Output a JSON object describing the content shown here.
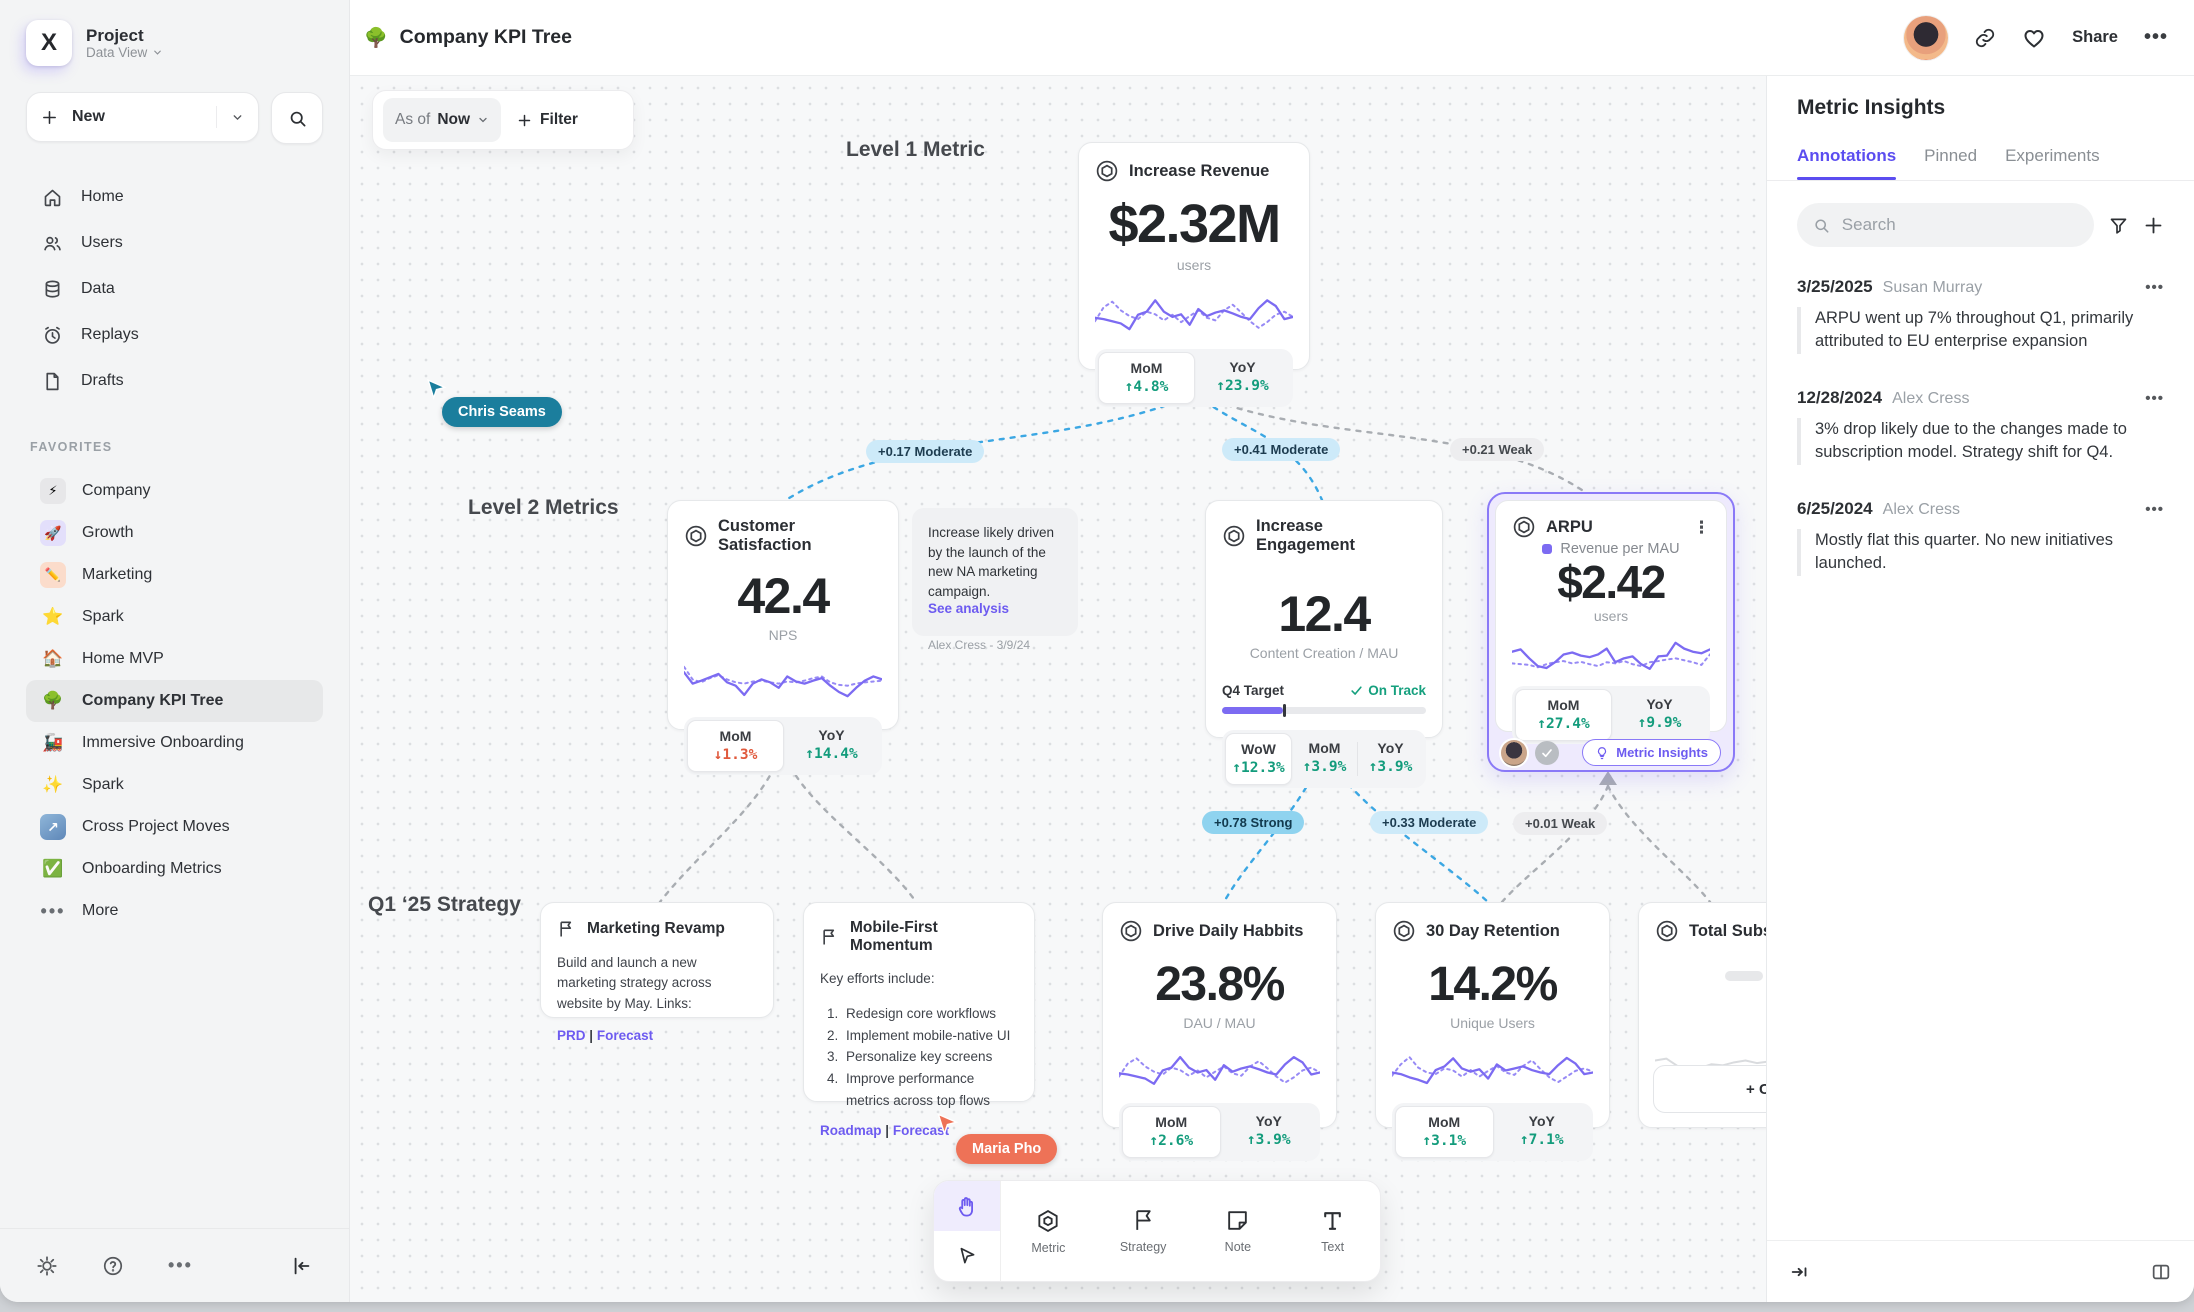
{
  "sidebar": {
    "project": {
      "name": "Project",
      "view": "Data View"
    },
    "new_label": "New",
    "nav": [
      {
        "label": "Home"
      },
      {
        "label": "Users"
      },
      {
        "label": "Data"
      },
      {
        "label": "Replays"
      },
      {
        "label": "Drafts"
      }
    ],
    "favorites_title": "FAVORITES",
    "favorites": [
      {
        "icon": "⚡",
        "label": "Company"
      },
      {
        "icon": "🚀",
        "label": "Growth"
      },
      {
        "icon": "✏️",
        "label": "Marketing"
      },
      {
        "icon": "⭐",
        "label": "Spark"
      },
      {
        "icon": "🏠",
        "label": "Home MVP"
      },
      {
        "icon": "🌳",
        "label": "Company KPI Tree"
      },
      {
        "icon": "🚂",
        "label": "Immersive Onboarding"
      },
      {
        "icon": "✨",
        "label": "Spark"
      },
      {
        "icon": "↗",
        "label": "Cross Project Moves"
      },
      {
        "icon": "✅",
        "label": "Onboarding Metrics"
      }
    ],
    "more_label": "More"
  },
  "header": {
    "icon": "🌳",
    "title": "Company KPI Tree",
    "share_label": "Share"
  },
  "canvas": {
    "asof_prefix": "As of",
    "asof_value": "Now",
    "filter_label": "Filter",
    "level1_label": "Level 1 Metric",
    "level2_label": "Level 2 Metrics",
    "strategy_label": "Q1 ‘25 Strategy",
    "cursors": {
      "chris": "Chris Seams",
      "maria": "Maria Pho"
    },
    "edge_labels": {
      "e1": "+0.17 Moderate",
      "e2": "+0.41 Moderate",
      "e3": "+0.21 Weak",
      "e4": "+0.78 Strong",
      "e5": "+0.33 Moderate",
      "e6": "+0.01 Weak"
    },
    "nodes": {
      "increase_revenue": {
        "title": "Increase Revenue",
        "value": "$2.32M",
        "unit": "users",
        "footer": [
          {
            "label": "MoM",
            "value": "↑4.8%"
          },
          {
            "label": "YoY",
            "value": "↑23.9%"
          }
        ],
        "spark_solid": [
          0.38,
          0.35,
          0.3,
          0.25,
          0.12,
          0.45,
          0.52,
          0.78,
          0.52,
          0.4,
          0.46,
          0.22,
          0.58,
          0.42,
          0.5,
          0.55,
          0.48,
          0.4,
          0.35,
          0.6,
          0.78,
          0.65,
          0.35,
          0.4
        ],
        "spark_dot": [
          0.3,
          0.62,
          0.75,
          0.55,
          0.42,
          0.35,
          0.52,
          0.46,
          0.32,
          0.45,
          0.28,
          0.42,
          0.55,
          0.38,
          0.32,
          0.55,
          0.68,
          0.5,
          0.3,
          0.15,
          0.28,
          0.45,
          0.52,
          0.4
        ]
      },
      "customer_satisfaction": {
        "title": "Customer Satisfaction",
        "value": "42.4",
        "unit": "NPS",
        "footer": [
          {
            "label": "MoM",
            "value": "↓1.3%"
          },
          {
            "label": "YoY",
            "value": "↑14.4%"
          }
        ],
        "spark_solid": [
          0.72,
          0.45,
          0.52,
          0.6,
          0.68,
          0.48,
          0.4,
          0.18,
          0.45,
          0.55,
          0.48,
          0.35,
          0.62,
          0.5,
          0.45,
          0.52,
          0.58,
          0.4,
          0.25,
          0.15,
          0.35,
          0.52,
          0.62,
          0.55
        ],
        "spark_dot": [
          0.85,
          0.55,
          0.48,
          0.58,
          0.65,
          0.55,
          0.48,
          0.45,
          0.5,
          0.52,
          0.48,
          0.45,
          0.5,
          0.48,
          0.52,
          0.58,
          0.62,
          0.48,
          0.42,
          0.4,
          0.45,
          0.48,
          0.5,
          0.52
        ]
      },
      "note": {
        "text": "Increase likely driven by the launch of the new NA marketing campaign.",
        "link": "See analysis",
        "author": "Alex Cress - 3/9/24"
      },
      "increase_engagement": {
        "title": "Increase Engagement",
        "value": "12.4",
        "unit": "Content Creation / MAU",
        "target_label": "Q4 Target",
        "target_status": "On Track",
        "target_pct": "30%",
        "footer": [
          {
            "label": "WoW",
            "value": "↑12.3%"
          },
          {
            "label": "MoM",
            "value": "↑3.9%"
          },
          {
            "label": "YoY",
            "value": "↑3.9%"
          }
        ]
      },
      "arpu": {
        "title": "ARPU",
        "legend": "Revenue per MAU",
        "value": "$2.42",
        "unit": "users",
        "footer": [
          {
            "label": "MoM",
            "value": "↑27.4%"
          },
          {
            "label": "YoY",
            "value": "↑9.9%"
          }
        ],
        "insights_label": "Metric Insights",
        "spark_solid": [
          0.62,
          0.68,
          0.45,
          0.25,
          0.2,
          0.35,
          0.55,
          0.6,
          0.52,
          0.48,
          0.55,
          0.7,
          0.35,
          0.45,
          0.5,
          0.3,
          0.18,
          0.5,
          0.52,
          0.85,
          0.7,
          0.62,
          0.58,
          0.68
        ],
        "spark_dot": [
          0.32,
          0.3,
          0.28,
          0.22,
          0.3,
          0.35,
          0.38,
          0.32,
          0.36,
          0.3,
          0.25,
          0.35,
          0.32,
          0.38,
          0.3,
          0.25,
          0.35,
          0.38,
          0.42,
          0.45,
          0.4,
          0.35,
          0.28,
          0.55
        ]
      },
      "marketing_revamp": {
        "title": "Marketing Revamp",
        "body": "Build and launch a new marketing strategy across website by May. Links:",
        "link1": "PRD",
        "sep": "|",
        "link2": "Forecast"
      },
      "mobile_first": {
        "title": "Mobile-First Momentum",
        "intro": "Key efforts include:",
        "items": [
          "Redesign core workflows",
          "Implement mobile-native UI",
          "Personalize key screens",
          "Improve performance metrics across top flows"
        ],
        "link1": "Roadmap",
        "sep": "|",
        "link2": "Forecast"
      },
      "drive_daily": {
        "title": "Drive Daily Habbits",
        "value": "23.8%",
        "unit": "DAU / MAU",
        "footer": [
          {
            "label": "MoM",
            "value": "↑2.6%"
          },
          {
            "label": "YoY",
            "value": "↑3.9%"
          }
        ],
        "spark_solid": [
          0.38,
          0.35,
          0.3,
          0.25,
          0.12,
          0.45,
          0.52,
          0.78,
          0.52,
          0.4,
          0.46,
          0.22,
          0.58,
          0.42,
          0.5,
          0.55,
          0.48,
          0.4,
          0.35,
          0.6,
          0.78,
          0.65,
          0.35,
          0.4
        ],
        "spark_dot": [
          0.3,
          0.62,
          0.75,
          0.55,
          0.42,
          0.35,
          0.52,
          0.46,
          0.32,
          0.45,
          0.28,
          0.42,
          0.55,
          0.38,
          0.32,
          0.55,
          0.68,
          0.5,
          0.3,
          0.15,
          0.28,
          0.45,
          0.52,
          0.4
        ]
      },
      "retention": {
        "title": "30 Day Retention",
        "value": "14.2%",
        "unit": "Unique Users",
        "footer": [
          {
            "label": "MoM",
            "value": "↑3.1%"
          },
          {
            "label": "YoY",
            "value": "↑7.1%"
          }
        ],
        "spark_solid": [
          0.4,
          0.36,
          0.28,
          0.22,
          0.14,
          0.46,
          0.55,
          0.75,
          0.5,
          0.42,
          0.48,
          0.25,
          0.6,
          0.45,
          0.5,
          0.55,
          0.46,
          0.4,
          0.36,
          0.58,
          0.76,
          0.62,
          0.36,
          0.4
        ],
        "spark_dot": [
          0.32,
          0.6,
          0.78,
          0.52,
          0.4,
          0.36,
          0.5,
          0.45,
          0.3,
          0.46,
          0.3,
          0.44,
          0.56,
          0.4,
          0.34,
          0.56,
          0.7,
          0.48,
          0.28,
          0.16,
          0.3,
          0.44,
          0.5,
          0.42
        ]
      },
      "total_subs": {
        "title": "Total Subscriptions",
        "connect_label": "+ Connect",
        "spark": [
          0.55,
          0.6,
          0.4,
          0.3,
          0.35,
          0.45,
          0.42,
          0.5,
          0.55,
          0.48,
          0.52,
          0.45,
          0.4,
          0.6,
          0.35,
          0.3,
          0.45
        ]
      }
    },
    "toolbar": {
      "tools": [
        {
          "label": "Metric"
        },
        {
          "label": "Strategy"
        },
        {
          "label": "Note"
        },
        {
          "label": "Text"
        }
      ]
    }
  },
  "insights": {
    "title": "Metric Insights",
    "tabs": [
      {
        "label": "Annotations"
      },
      {
        "label": "Pinned"
      },
      {
        "label": "Experiments"
      }
    ],
    "search_placeholder": "Search",
    "annotations": [
      {
        "date": "3/25/2025",
        "author": "Susan Murray",
        "text": "ARPU went up 7% throughout Q1, primarily attributed to EU enterprise expansion"
      },
      {
        "date": "12/28/2024",
        "author": "Alex Cress",
        "text": "3% drop likely due to the changes made to subscription model. Strategy shift for Q4."
      },
      {
        "date": "6/25/2024",
        "author": "Alex Cress",
        "text": "Mostly flat this quarter. No new initiatives launched."
      }
    ]
  }
}
